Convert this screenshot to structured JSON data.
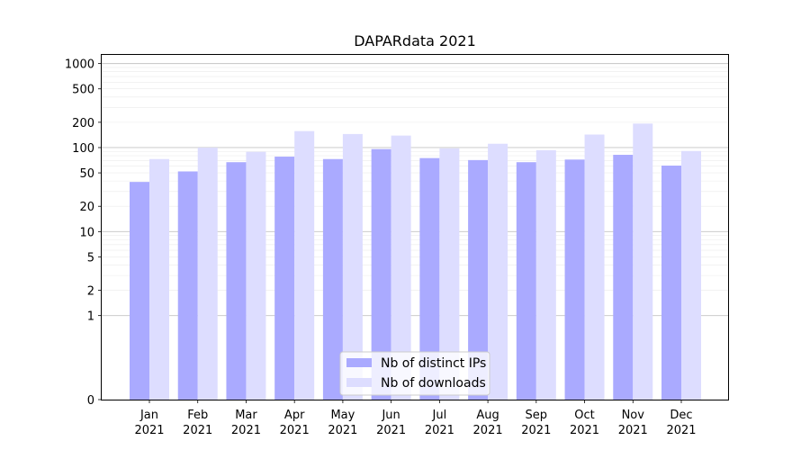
{
  "chart_data": {
    "type": "bar",
    "title": "DAPARdata 2021",
    "xlabel": "",
    "ylabel": "",
    "yscale": "symlog",
    "ylim": [
      0,
      1300
    ],
    "y_ticks": [
      0,
      1,
      2,
      5,
      10,
      20,
      50,
      100,
      200,
      500,
      1000
    ],
    "grid": "horizontal major and minor",
    "legend_position": "lower-center",
    "categories": [
      [
        "Jan",
        "2021"
      ],
      [
        "Feb",
        "2021"
      ],
      [
        "Mar",
        "2021"
      ],
      [
        "Apr",
        "2021"
      ],
      [
        "May",
        "2021"
      ],
      [
        "Jun",
        "2021"
      ],
      [
        "Jul",
        "2021"
      ],
      [
        "Aug",
        "2021"
      ],
      [
        "Sep",
        "2021"
      ],
      [
        "Oct",
        "2021"
      ],
      [
        "Nov",
        "2021"
      ],
      [
        "Dec",
        "2021"
      ]
    ],
    "series": [
      {
        "name": "Nb of distinct IPs",
        "color": "#aaaaff",
        "values": [
          39,
          52,
          67,
          78,
          73,
          96,
          75,
          71,
          67,
          72,
          82,
          61
        ]
      },
      {
        "name": "Nb of downloads",
        "color": "#ddddff",
        "values": [
          73,
          100,
          89,
          157,
          145,
          139,
          98,
          111,
          93,
          143,
          193,
          91
        ]
      }
    ]
  }
}
